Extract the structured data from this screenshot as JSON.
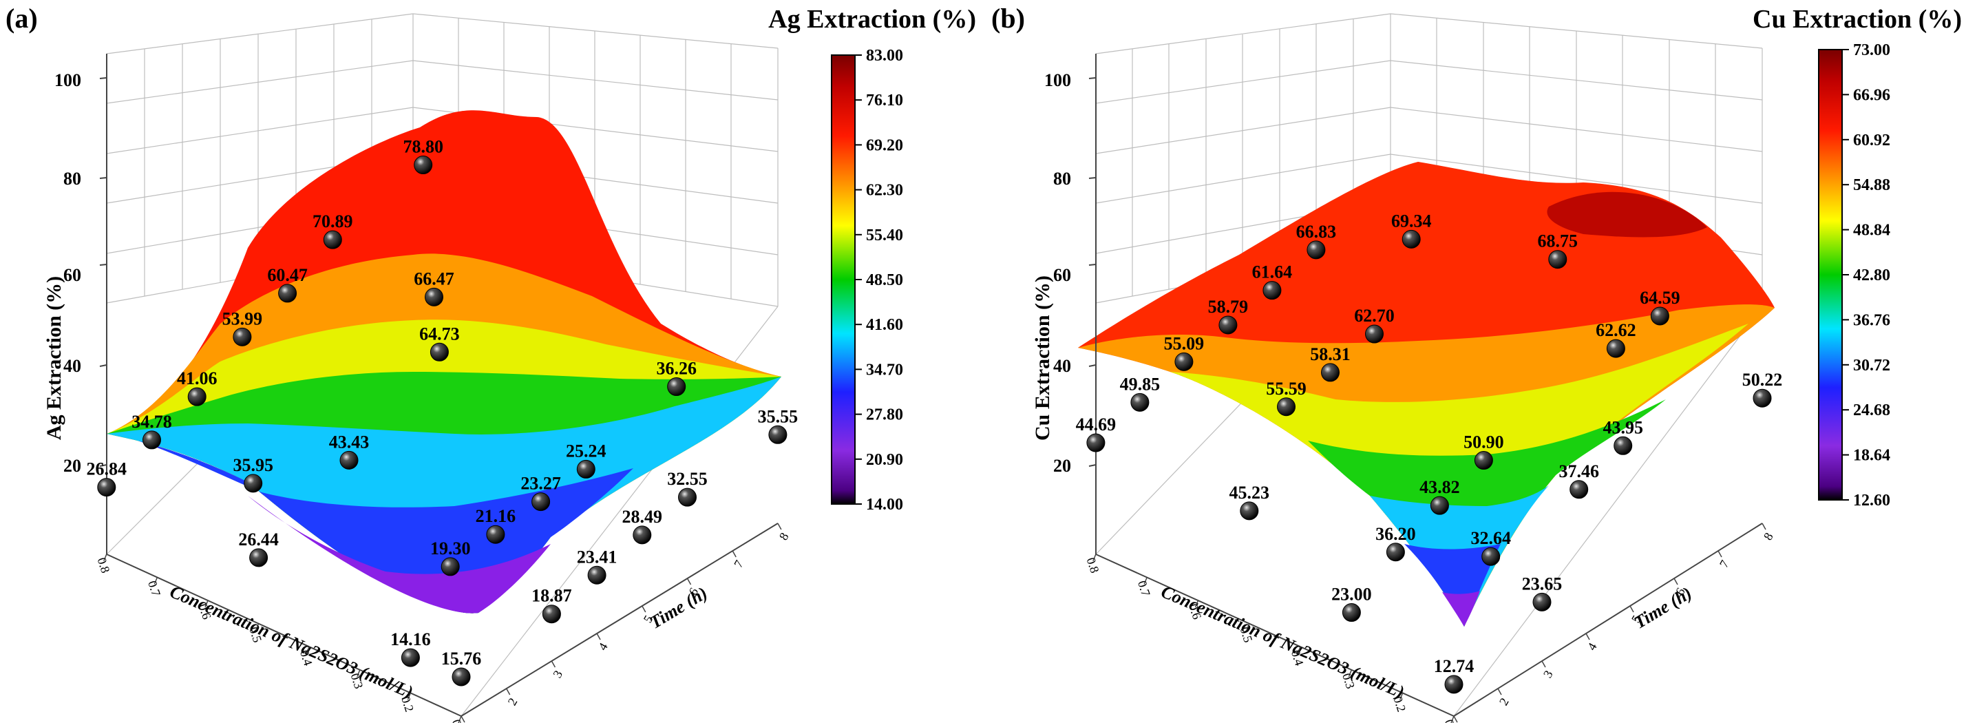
{
  "chart_data": [
    {
      "type": "surface3d",
      "panel": "(a)",
      "title": "Ag Extraction (%)",
      "zlabel": "Ag Extraction (%)",
      "xlabel": "Concentration of Na2S2O3 (mol/L)",
      "ylabel": "Time (h)",
      "zlim": [
        0,
        100
      ],
      "z_ticks": [
        "20",
        "40",
        "60",
        "80",
        "100"
      ],
      "x_ticks": [
        "0.1",
        "0.2",
        "0.3",
        "0.4",
        "0.5",
        "0.6",
        "0.7",
        "0.8"
      ],
      "y_ticks": [
        "1",
        "2",
        "3",
        "4",
        "5",
        "6",
        "7",
        "8"
      ],
      "colorbar": {
        "min": 14.0,
        "max": 83.0,
        "ticks": [
          "83.00",
          "76.10",
          "69.20",
          "62.30",
          "55.40",
          "48.50",
          "41.60",
          "34.70",
          "27.80",
          "20.90",
          "14.00"
        ]
      },
      "points": [
        {
          "c": 0.8,
          "t": 1,
          "v": 26.84,
          "label": "26.84"
        },
        {
          "c": 0.8,
          "t": 2,
          "v": 34.78,
          "label": "34.78"
        },
        {
          "c": 0.8,
          "t": 3,
          "v": 41.06,
          "label": "41.06"
        },
        {
          "c": 0.8,
          "t": 4,
          "v": 53.99,
          "label": "53.99"
        },
        {
          "c": 0.8,
          "t": 5,
          "v": 60.47,
          "label": "60.47"
        },
        {
          "c": 0.8,
          "t": 6,
          "v": 70.89,
          "label": "70.89"
        },
        {
          "c": 0.8,
          "t": 8,
          "v": 78.8,
          "label": "78.80"
        },
        {
          "c": 0.6,
          "t": 6,
          "v": 66.47,
          "label": "66.47"
        },
        {
          "c": 0.5,
          "t": 5,
          "v": 64.73,
          "label": "64.73"
        },
        {
          "c": 0.5,
          "t": 3,
          "v": 43.43,
          "label": "43.43"
        },
        {
          "c": 0.6,
          "t": 2,
          "v": 35.95,
          "label": "35.95"
        },
        {
          "c": 0.5,
          "t": 1,
          "v": 26.44,
          "label": "26.44"
        },
        {
          "c": 0.2,
          "t": 1,
          "v": 14.16,
          "label": "14.16"
        },
        {
          "c": 0.1,
          "t": 1,
          "v": 15.76,
          "label": "15.76"
        },
        {
          "c": 0.3,
          "t": 3,
          "v": 19.3,
          "label": "19.30"
        },
        {
          "c": 0.3,
          "t": 4,
          "v": 21.16,
          "label": "21.16"
        },
        {
          "c": 0.1,
          "t": 3,
          "v": 18.87,
          "label": "18.87"
        },
        {
          "c": 0.3,
          "t": 5,
          "v": 23.27,
          "label": "23.27"
        },
        {
          "c": 0.1,
          "t": 4,
          "v": 23.41,
          "label": "23.41"
        },
        {
          "c": 0.1,
          "t": 5,
          "v": 28.49,
          "label": "28.49"
        },
        {
          "c": 0.3,
          "t": 6,
          "v": 25.24,
          "label": "25.24"
        },
        {
          "c": 0.1,
          "t": 6,
          "v": 32.55,
          "label": "32.55"
        },
        {
          "c": 0.3,
          "t": 8,
          "v": 36.26,
          "label": "36.26"
        },
        {
          "c": 0.1,
          "t": 8,
          "v": 35.55,
          "label": "35.55"
        }
      ]
    },
    {
      "type": "surface3d",
      "panel": "(b)",
      "title": "Cu Extraction (%)",
      "zlabel": "Cu Extraction (%)",
      "xlabel": "Concentration of Na2S2O3 (mol/L)",
      "ylabel": "Time (h)",
      "zlim": [
        0,
        100
      ],
      "z_ticks": [
        "20",
        "40",
        "60",
        "80",
        "100"
      ],
      "x_ticks": [
        "0.1",
        "0.2",
        "0.3",
        "0.4",
        "0.5",
        "0.6",
        "0.7",
        "0.8"
      ],
      "y_ticks": [
        "1",
        "2",
        "3",
        "4",
        "5",
        "6",
        "7",
        "8"
      ],
      "colorbar": {
        "min": 12.6,
        "max": 73.0,
        "ticks": [
          "73.00",
          "66.96",
          "60.92",
          "54.88",
          "48.84",
          "42.80",
          "36.76",
          "30.72",
          "24.68",
          "18.64",
          "12.60"
        ]
      },
      "points": [
        {
          "c": 0.8,
          "t": 1,
          "v": 44.69,
          "label": "44.69"
        },
        {
          "c": 0.8,
          "t": 2,
          "v": 49.85,
          "label": "49.85"
        },
        {
          "c": 0.8,
          "t": 3,
          "v": 55.09,
          "label": "55.09"
        },
        {
          "c": 0.8,
          "t": 4,
          "v": 58.79,
          "label": "58.79"
        },
        {
          "c": 0.8,
          "t": 5,
          "v": 61.64,
          "label": "61.64"
        },
        {
          "c": 0.8,
          "t": 6,
          "v": 66.83,
          "label": "66.83"
        },
        {
          "c": 0.7,
          "t": 7,
          "v": 69.34,
          "label": "69.34"
        },
        {
          "c": 0.5,
          "t": 8,
          "v": 68.75,
          "label": "68.75"
        },
        {
          "c": 0.3,
          "t": 8,
          "v": 64.59,
          "label": "64.59"
        },
        {
          "c": 0.1,
          "t": 8,
          "v": 50.22,
          "label": "50.22"
        },
        {
          "c": 0.6,
          "t": 5,
          "v": 62.7,
          "label": "62.70"
        },
        {
          "c": 0.6,
          "t": 4,
          "v": 58.31,
          "label": "58.31"
        },
        {
          "c": 0.6,
          "t": 3,
          "v": 55.59,
          "label": "55.59"
        },
        {
          "c": 0.3,
          "t": 7,
          "v": 62.62,
          "label": "62.62"
        },
        {
          "c": 0.5,
          "t": 1,
          "v": 45.23,
          "label": "45.23"
        },
        {
          "c": 0.3,
          "t": 4,
          "v": 50.9,
          "label": "50.90"
        },
        {
          "c": 0.3,
          "t": 3,
          "v": 43.82,
          "label": "43.82"
        },
        {
          "c": 0.3,
          "t": 2,
          "v": 36.2,
          "label": "36.20"
        },
        {
          "c": 0.2,
          "t": 6,
          "v": 43.95,
          "label": "43.95"
        },
        {
          "c": 0.2,
          "t": 5,
          "v": 37.46,
          "label": "37.46"
        },
        {
          "c": 0.2,
          "t": 3,
          "v": 32.64,
          "label": "32.64"
        },
        {
          "c": 0.3,
          "t": 1,
          "v": 23.0,
          "label": "23.00"
        },
        {
          "c": 0.1,
          "t": 3,
          "v": 23.65,
          "label": "23.65"
        },
        {
          "c": 0.1,
          "t": 1,
          "v": 12.74,
          "label": "12.74"
        }
      ]
    }
  ]
}
